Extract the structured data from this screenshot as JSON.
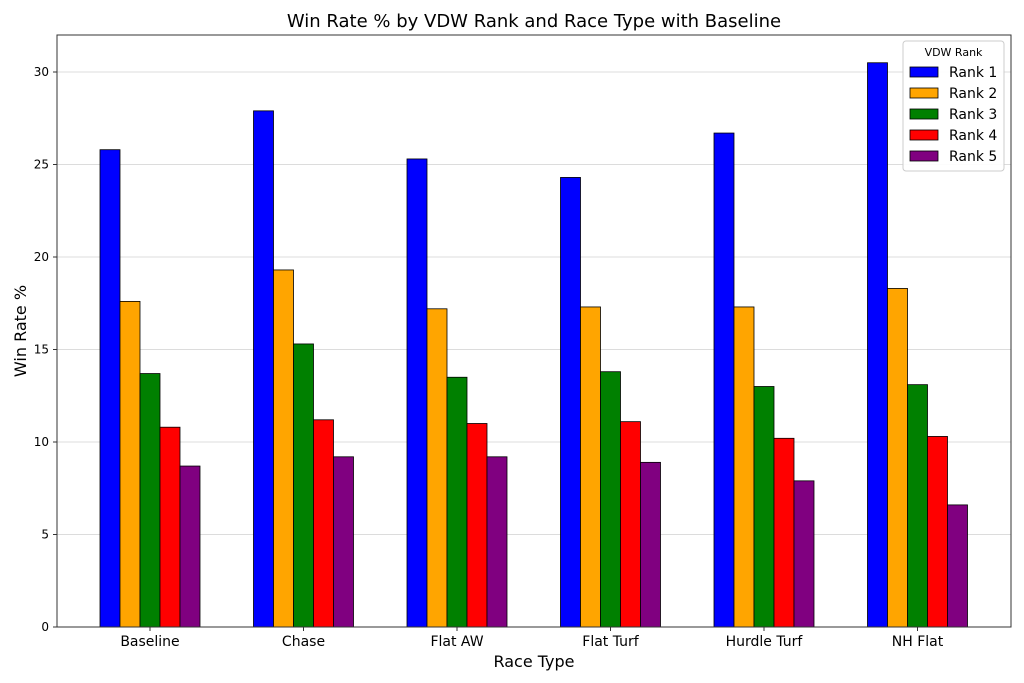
{
  "chart_data": {
    "type": "bar",
    "title": "Win Rate % by VDW Rank and Race Type with Baseline",
    "xlabel": "Race Type",
    "ylabel": "Win Rate %",
    "ylim": [
      0,
      32
    ],
    "yticks": [
      0,
      5,
      10,
      15,
      20,
      25,
      30
    ],
    "grid": "y",
    "legend": {
      "title": "VDW Rank",
      "placement": "top-right"
    },
    "categories": [
      "Baseline",
      "Chase",
      "Flat AW",
      "Flat Turf",
      "Hurdle Turf",
      "NH Flat"
    ],
    "series": [
      {
        "name": "Rank 1",
        "color": "#0000ff",
        "values": [
          25.8,
          27.9,
          25.3,
          24.3,
          26.7,
          30.5
        ]
      },
      {
        "name": "Rank 2",
        "color": "#ffa500",
        "values": [
          17.6,
          19.3,
          17.2,
          17.3,
          17.3,
          18.3
        ]
      },
      {
        "name": "Rank 3",
        "color": "#008000",
        "values": [
          13.7,
          15.3,
          13.5,
          13.8,
          13.0,
          13.1
        ]
      },
      {
        "name": "Rank 4",
        "color": "#ff0000",
        "values": [
          10.8,
          11.2,
          11.0,
          11.1,
          10.2,
          10.3
        ]
      },
      {
        "name": "Rank 5",
        "color": "#800080",
        "values": [
          8.7,
          9.2,
          9.2,
          8.9,
          7.9,
          6.6
        ]
      }
    ]
  }
}
